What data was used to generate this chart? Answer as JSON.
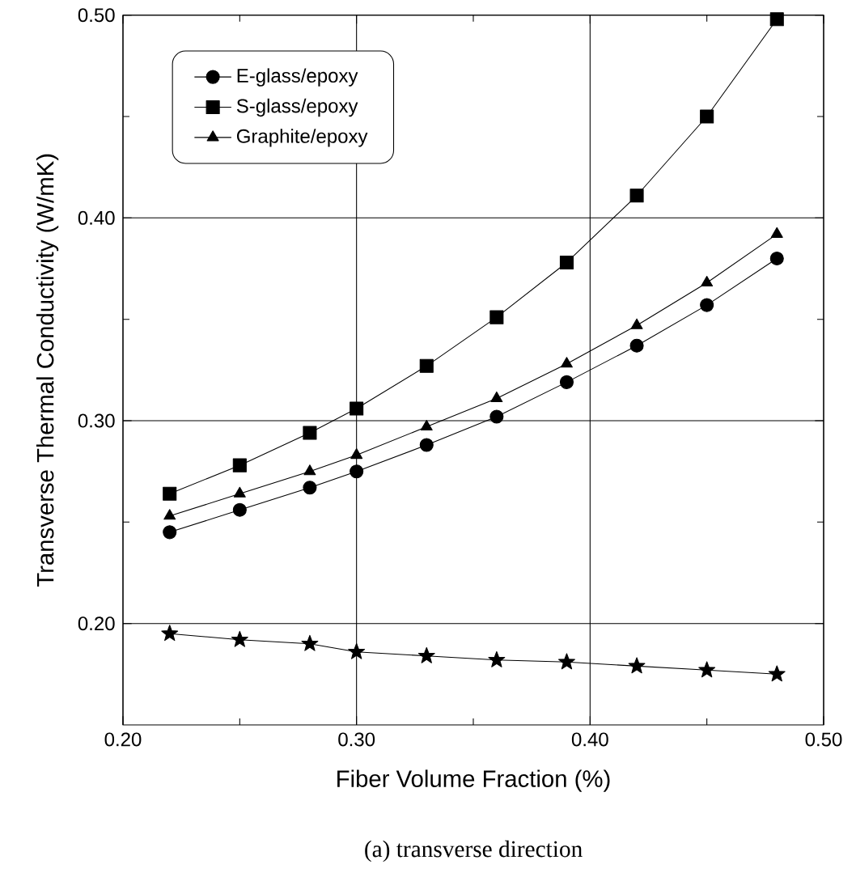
{
  "chart_data": {
    "type": "line",
    "xlabel": "Fiber Volume Fraction (%)",
    "ylabel": "Transverse Thermal Conductivity (W/mK)",
    "annotations": [
      "(a) transverse direction"
    ],
    "x": [
      0.22,
      0.25,
      0.28,
      0.3,
      0.33,
      0.36,
      0.39,
      0.42,
      0.45,
      0.48
    ],
    "series": [
      {
        "name": "E-glass/epoxy",
        "color": "#000000",
        "marker": "circle",
        "values": [
          0.245,
          0.256,
          0.267,
          0.275,
          0.288,
          0.302,
          0.319,
          0.337,
          0.357,
          0.38
        ]
      },
      {
        "name": "S-glass/epoxy",
        "color": "#000000",
        "marker": "square",
        "values": [
          0.264,
          0.278,
          0.294,
          0.306,
          0.327,
          0.351,
          0.378,
          0.411,
          0.45,
          0.498
        ]
      },
      {
        "color": "#000000",
        "marker": "star",
        "values": [
          0.195,
          0.192,
          0.19,
          0.186,
          0.184,
          0.182,
          0.181,
          0.179,
          0.177,
          0.175
        ]
      },
      {
        "name": "Graphite/epoxy",
        "color": "#000000",
        "marker": "triangle",
        "values": [
          0.253,
          0.264,
          0.275,
          0.283,
          0.297,
          0.311,
          0.328,
          0.347,
          0.368,
          0.392
        ]
      }
    ],
    "xlim": [
      0.2,
      0.5
    ],
    "xticks": [
      {
        "value": 0.2,
        "label": "0.20"
      },
      {
        "value": 0.25,
        "label": null
      },
      {
        "value": 0.3,
        "label": "0.30"
      },
      {
        "value": 0.35,
        "label": null
      },
      {
        "value": 0.4,
        "label": "0.40"
      },
      {
        "value": 0.45,
        "label": null
      },
      {
        "value": 0.5,
        "label": "0.50"
      }
    ],
    "ylim": [
      0.15,
      0.5
    ],
    "yticks": [
      {
        "value": 0.2,
        "label": "0.20"
      },
      {
        "value": 0.25,
        "label": null
      },
      {
        "value": 0.3,
        "label": "0.30"
      },
      {
        "value": 0.35,
        "label": null
      },
      {
        "value": 0.4,
        "label": "0.40"
      },
      {
        "value": 0.45,
        "label": null
      },
      {
        "value": 0.5,
        "label": "0.50"
      }
    ],
    "grid": true,
    "legend": "top left",
    "line_style": "solid"
  }
}
